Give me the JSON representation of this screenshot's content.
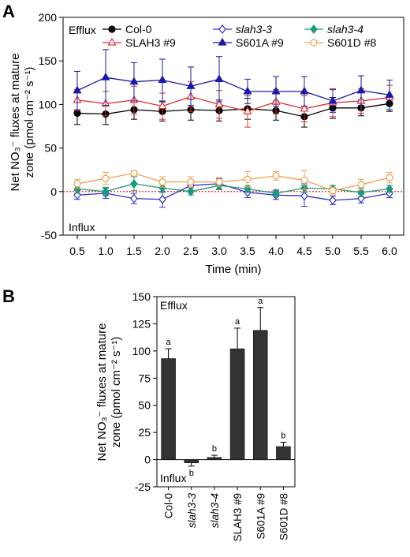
{
  "panel_a": {
    "letter": "A",
    "efflux_label": "Efflux",
    "influx_label": "Influx",
    "ylabel_line1": "Net NO₃⁻ fluxes at mature",
    "ylabel_line2": "zone (pmol cm⁻² s⁻¹)",
    "xlabel": "Time (min)"
  },
  "panel_b": {
    "letter": "B",
    "efflux_label": "Efflux",
    "influx_label": "Influx",
    "ylabel_line1": "Net NO₃⁻ fluxes at mature",
    "ylabel_line2": "zone (pmol cm⁻² s⁻¹)"
  },
  "chart_data": [
    {
      "type": "line",
      "xlabel": "Time (min)",
      "ylabel": "Net NO3- fluxes at mature zone (pmol cm-2 s-1)",
      "xlim": [
        0.25,
        6.25
      ],
      "ylim": [
        -50,
        200
      ],
      "x": [
        0.5,
        1.0,
        1.5,
        2.0,
        2.5,
        3.0,
        3.5,
        4.0,
        4.5,
        5.0,
        5.5,
        6.0
      ],
      "x_tick_labels": [
        "0.5",
        "1.0",
        "1.5",
        "2.0",
        "2.5",
        "3.0",
        "3.5",
        "4.0",
        "4.5",
        "5.0",
        "5.5",
        "6.0"
      ],
      "y_ticks": [
        -50,
        0,
        50,
        100,
        150,
        200
      ],
      "y_tick_labels": [
        "-50",
        "0",
        "50",
        "100",
        "150",
        "200"
      ],
      "reference_line": {
        "y": 0,
        "color": "#ff0000",
        "style": "dotted"
      },
      "legend_position": "top",
      "series": [
        {
          "name": "Col-0",
          "italic": false,
          "color": "#000000",
          "marker": "circle-filled",
          "values": [
            90,
            89,
            94,
            92,
            94,
            93,
            95,
            93,
            86,
            96,
            96,
            101
          ],
          "errors": [
            13,
            12,
            11,
            11,
            12,
            12,
            12,
            11,
            12,
            12,
            9,
            9
          ]
        },
        {
          "name": "slah3-3",
          "italic": true,
          "color": "#3030c8",
          "marker": "diamond-open",
          "values": [
            -4,
            -2,
            -8,
            -9,
            7,
            9,
            -1,
            -4,
            -5,
            -10,
            -8,
            -2
          ],
          "errors": [
            5,
            6,
            6,
            9,
            6,
            6,
            6,
            5,
            12,
            5,
            5,
            5
          ]
        },
        {
          "name": "slah3-4",
          "italic": true,
          "color": "#1a9a7a",
          "marker": "diamond-filled",
          "values": [
            3,
            0,
            9,
            4,
            0,
            7,
            3,
            -2,
            4,
            3,
            -1,
            3
          ],
          "errors": [
            5,
            5,
            8,
            5,
            4,
            5,
            4,
            4,
            5,
            4,
            5,
            4
          ]
        },
        {
          "name": "SLAH3 #9",
          "italic": false,
          "color": "#e03030",
          "marker": "triangle-open",
          "values": [
            105,
            101,
            105,
            98,
            109,
            100,
            92,
            103,
            95,
            102,
            104,
            108
          ],
          "errors": [
            12,
            14,
            16,
            15,
            17,
            16,
            18,
            14,
            15,
            16,
            14,
            14
          ]
        },
        {
          "name": "S601A #9",
          "italic": false,
          "color": "#1a1aa8",
          "marker": "triangle-filled",
          "values": [
            116,
            131,
            126,
            128,
            121,
            129,
            115,
            115,
            115,
            104,
            116,
            111
          ],
          "errors": [
            22,
            32,
            22,
            24,
            22,
            26,
            14,
            17,
            17,
            13,
            17,
            17
          ]
        },
        {
          "name": "S601D #8",
          "italic": false,
          "color": "#f0a050",
          "marker": "circle-open",
          "values": [
            9,
            15,
            21,
            11,
            11,
            11,
            14,
            18,
            13,
            1,
            8,
            16
          ],
          "errors": [
            5,
            7,
            3,
            6,
            6,
            5,
            9,
            5,
            11,
            4,
            6,
            6
          ]
        }
      ]
    },
    {
      "type": "bar",
      "ylabel": "Net NO3- fluxes at mature zone (pmol cm-2 s-1)",
      "ylim": [
        -25,
        150
      ],
      "y_ticks": [
        -25,
        0,
        25,
        50,
        75,
        100,
        125,
        150
      ],
      "y_tick_labels": [
        "-25",
        "0",
        "25",
        "50",
        "75",
        "100",
        "125",
        "150"
      ],
      "bar_color": "#333333",
      "categories": [
        {
          "label": "Col-0",
          "italic": false
        },
        {
          "label": "slah3-3",
          "italic": true
        },
        {
          "label": "slah3-4",
          "italic": true
        },
        {
          "label": "SLAH3 #9",
          "italic": false
        },
        {
          "label": "S601A #9",
          "italic": false
        },
        {
          "label": "S601D #8",
          "italic": false
        }
      ],
      "values": [
        93,
        -3,
        2,
        102,
        119,
        12
      ],
      "errors": [
        9,
        3,
        2,
        19,
        21,
        4
      ],
      "significance": [
        "a",
        "b",
        "b",
        "a",
        "a",
        "b"
      ]
    }
  ]
}
